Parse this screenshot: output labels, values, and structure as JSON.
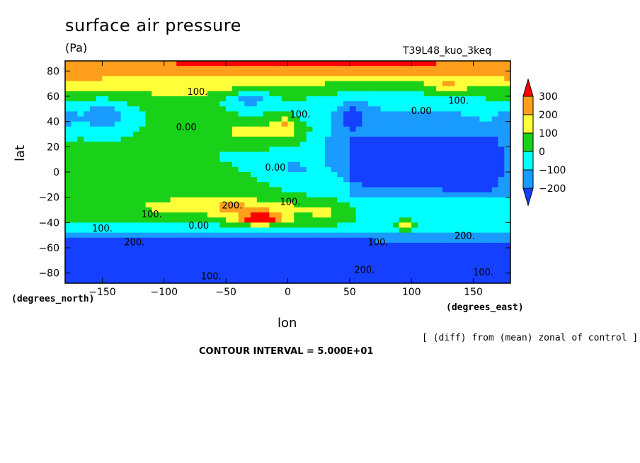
{
  "chart_data": {
    "type": "heatmap",
    "title": "surface air pressure",
    "units": "(Pa)",
    "run_label": "T39L48_kuo_3keq",
    "xlabel": "lon",
    "ylabel": "lat",
    "x_unit_label": "(degrees_east)",
    "y_unit_label": "(degrees_north)",
    "xlim": [
      -180,
      180
    ],
    "ylim": [
      -88,
      88
    ],
    "x_ticks": [
      -150,
      -100,
      -50,
      0,
      50,
      100,
      150
    ],
    "y_ticks": [
      80,
      60,
      40,
      20,
      0,
      -20,
      -40,
      -60,
      -80
    ],
    "note": "[ (diff) from (mean) zonal of control ]",
    "contour_interval_text": "CONTOUR INTERVAL = 5.000E+01",
    "colorbar": {
      "labels": [
        "300",
        "200",
        "100",
        "0",
        "−100",
        "−200"
      ],
      "bins": [
        {
          "min": 300,
          "max": 400,
          "color": "#ff0000"
        },
        {
          "min": 200,
          "max": 300,
          "color": "#ff9f1c"
        },
        {
          "min": 100,
          "max": 200,
          "color": "#ffff3a"
        },
        {
          "min": 0,
          "max": 100,
          "color": "#19d119"
        },
        {
          "min": -100,
          "max": 0,
          "color": "#00ffff"
        },
        {
          "min": -200,
          "max": -100,
          "color": "#1a9bff"
        },
        {
          "min": -300,
          "max": -200,
          "color": "#1540ff"
        }
      ]
    },
    "contour_labels": [
      {
        "lon": -73,
        "lat": 63,
        "text": "100."
      },
      {
        "lon": 10,
        "lat": 45,
        "text": "100."
      },
      {
        "lon": -82,
        "lat": 35,
        "text": "0.00"
      },
      {
        "lon": 108,
        "lat": 48,
        "text": "0.00"
      },
      {
        "lon": 138,
        "lat": 56,
        "text": "100."
      },
      {
        "lon": -10,
        "lat": 3,
        "text": "0.00"
      },
      {
        "lon": 2,
        "lat": -24,
        "text": "100."
      },
      {
        "lon": -45,
        "lat": -27,
        "text": "200."
      },
      {
        "lon": -110,
        "lat": -34,
        "text": "100."
      },
      {
        "lon": -72,
        "lat": -43,
        "text": "0.00"
      },
      {
        "lon": -150,
        "lat": -45,
        "text": "100."
      },
      {
        "lon": -124,
        "lat": -56,
        "text": "200."
      },
      {
        "lon": 73,
        "lat": -56,
        "text": "100."
      },
      {
        "lon": 143,
        "lat": -51,
        "text": "200."
      },
      {
        "lon": 62,
        "lat": -78,
        "text": "200."
      },
      {
        "lon": 158,
        "lat": -80,
        "text": "100."
      },
      {
        "lon": -62,
        "lat": -83,
        "text": "100."
      }
    ],
    "features": [
      {
        "lon": -180,
        "lat": 86,
        "value": 120,
        "sx": 180,
        "sy": 14
      },
      {
        "lon": 0,
        "lat": 86,
        "value": 120,
        "sx": 180,
        "sy": 14
      },
      {
        "lon": 180,
        "lat": 86,
        "value": 120,
        "sx": 180,
        "sy": 14
      },
      {
        "lon": 80,
        "lat": 88,
        "value": 100,
        "sx": 30,
        "sy": 5
      },
      {
        "lon": 130,
        "lat": 68,
        "value": 150,
        "sx": 12,
        "sy": 5
      },
      {
        "lon": -80,
        "lat": 66,
        "value": 70,
        "sx": 60,
        "sy": 8
      },
      {
        "lon": -180,
        "lat": 72,
        "value": 60,
        "sx": 40,
        "sy": 10
      },
      {
        "lon": 180,
        "lat": 72,
        "value": 60,
        "sx": 40,
        "sy": 10
      },
      {
        "lon": -35,
        "lat": 32,
        "value": 150,
        "sx": 22,
        "sy": 9
      },
      {
        "lon": 0,
        "lat": 32,
        "value": 150,
        "sx": 25,
        "sy": 12
      },
      {
        "lon": -2,
        "lat": 38,
        "value": 130,
        "sx": 9,
        "sy": 7
      },
      {
        "lon": 90,
        "lat": 32,
        "value": -170,
        "sx": 95,
        "sy": 30
      },
      {
        "lon": 70,
        "lat": 0,
        "value": -120,
        "sx": 45,
        "sy": 25
      },
      {
        "lon": 150,
        "lat": -5,
        "value": -130,
        "sx": 45,
        "sy": 30
      },
      {
        "lon": -150,
        "lat": 45,
        "value": -190,
        "sx": 20,
        "sy": 12
      },
      {
        "lon": -180,
        "lat": 42,
        "value": -130,
        "sx": 10,
        "sy": 10
      },
      {
        "lon": 180,
        "lat": 42,
        "value": -130,
        "sx": 10,
        "sy": 10
      },
      {
        "lon": -30,
        "lat": 58,
        "value": -180,
        "sx": 18,
        "sy": 7
      },
      {
        "lon": 52,
        "lat": 46,
        "value": -140,
        "sx": 12,
        "sy": 12
      },
      {
        "lon": 5,
        "lat": 2,
        "value": -140,
        "sx": 8,
        "sy": 5
      },
      {
        "lon": -40,
        "lat": -28,
        "value": 200,
        "sx": 55,
        "sy": 7
      },
      {
        "lon": -100,
        "lat": -26,
        "value": 70,
        "sx": 40,
        "sy": 8
      },
      {
        "lon": 30,
        "lat": -33,
        "value": 90,
        "sx": 15,
        "sy": 9
      },
      {
        "lon": -22,
        "lat": -37,
        "value": 280,
        "sx": 22,
        "sy": 5
      },
      {
        "lon": -20,
        "lat": -38,
        "value": 260,
        "sx": 11,
        "sy": 3
      },
      {
        "lon": -180,
        "lat": -62,
        "value": -280,
        "sx": 400,
        "sy": 12
      },
      {
        "lon": 60,
        "lat": -68,
        "value": -60,
        "sx": 40,
        "sy": 8
      },
      {
        "lon": -180,
        "lat": -88,
        "value": -200,
        "sx": 500,
        "sy": 7
      },
      {
        "lon": 95,
        "lat": -44,
        "value": 200,
        "sx": 7,
        "sy": 4
      }
    ]
  }
}
